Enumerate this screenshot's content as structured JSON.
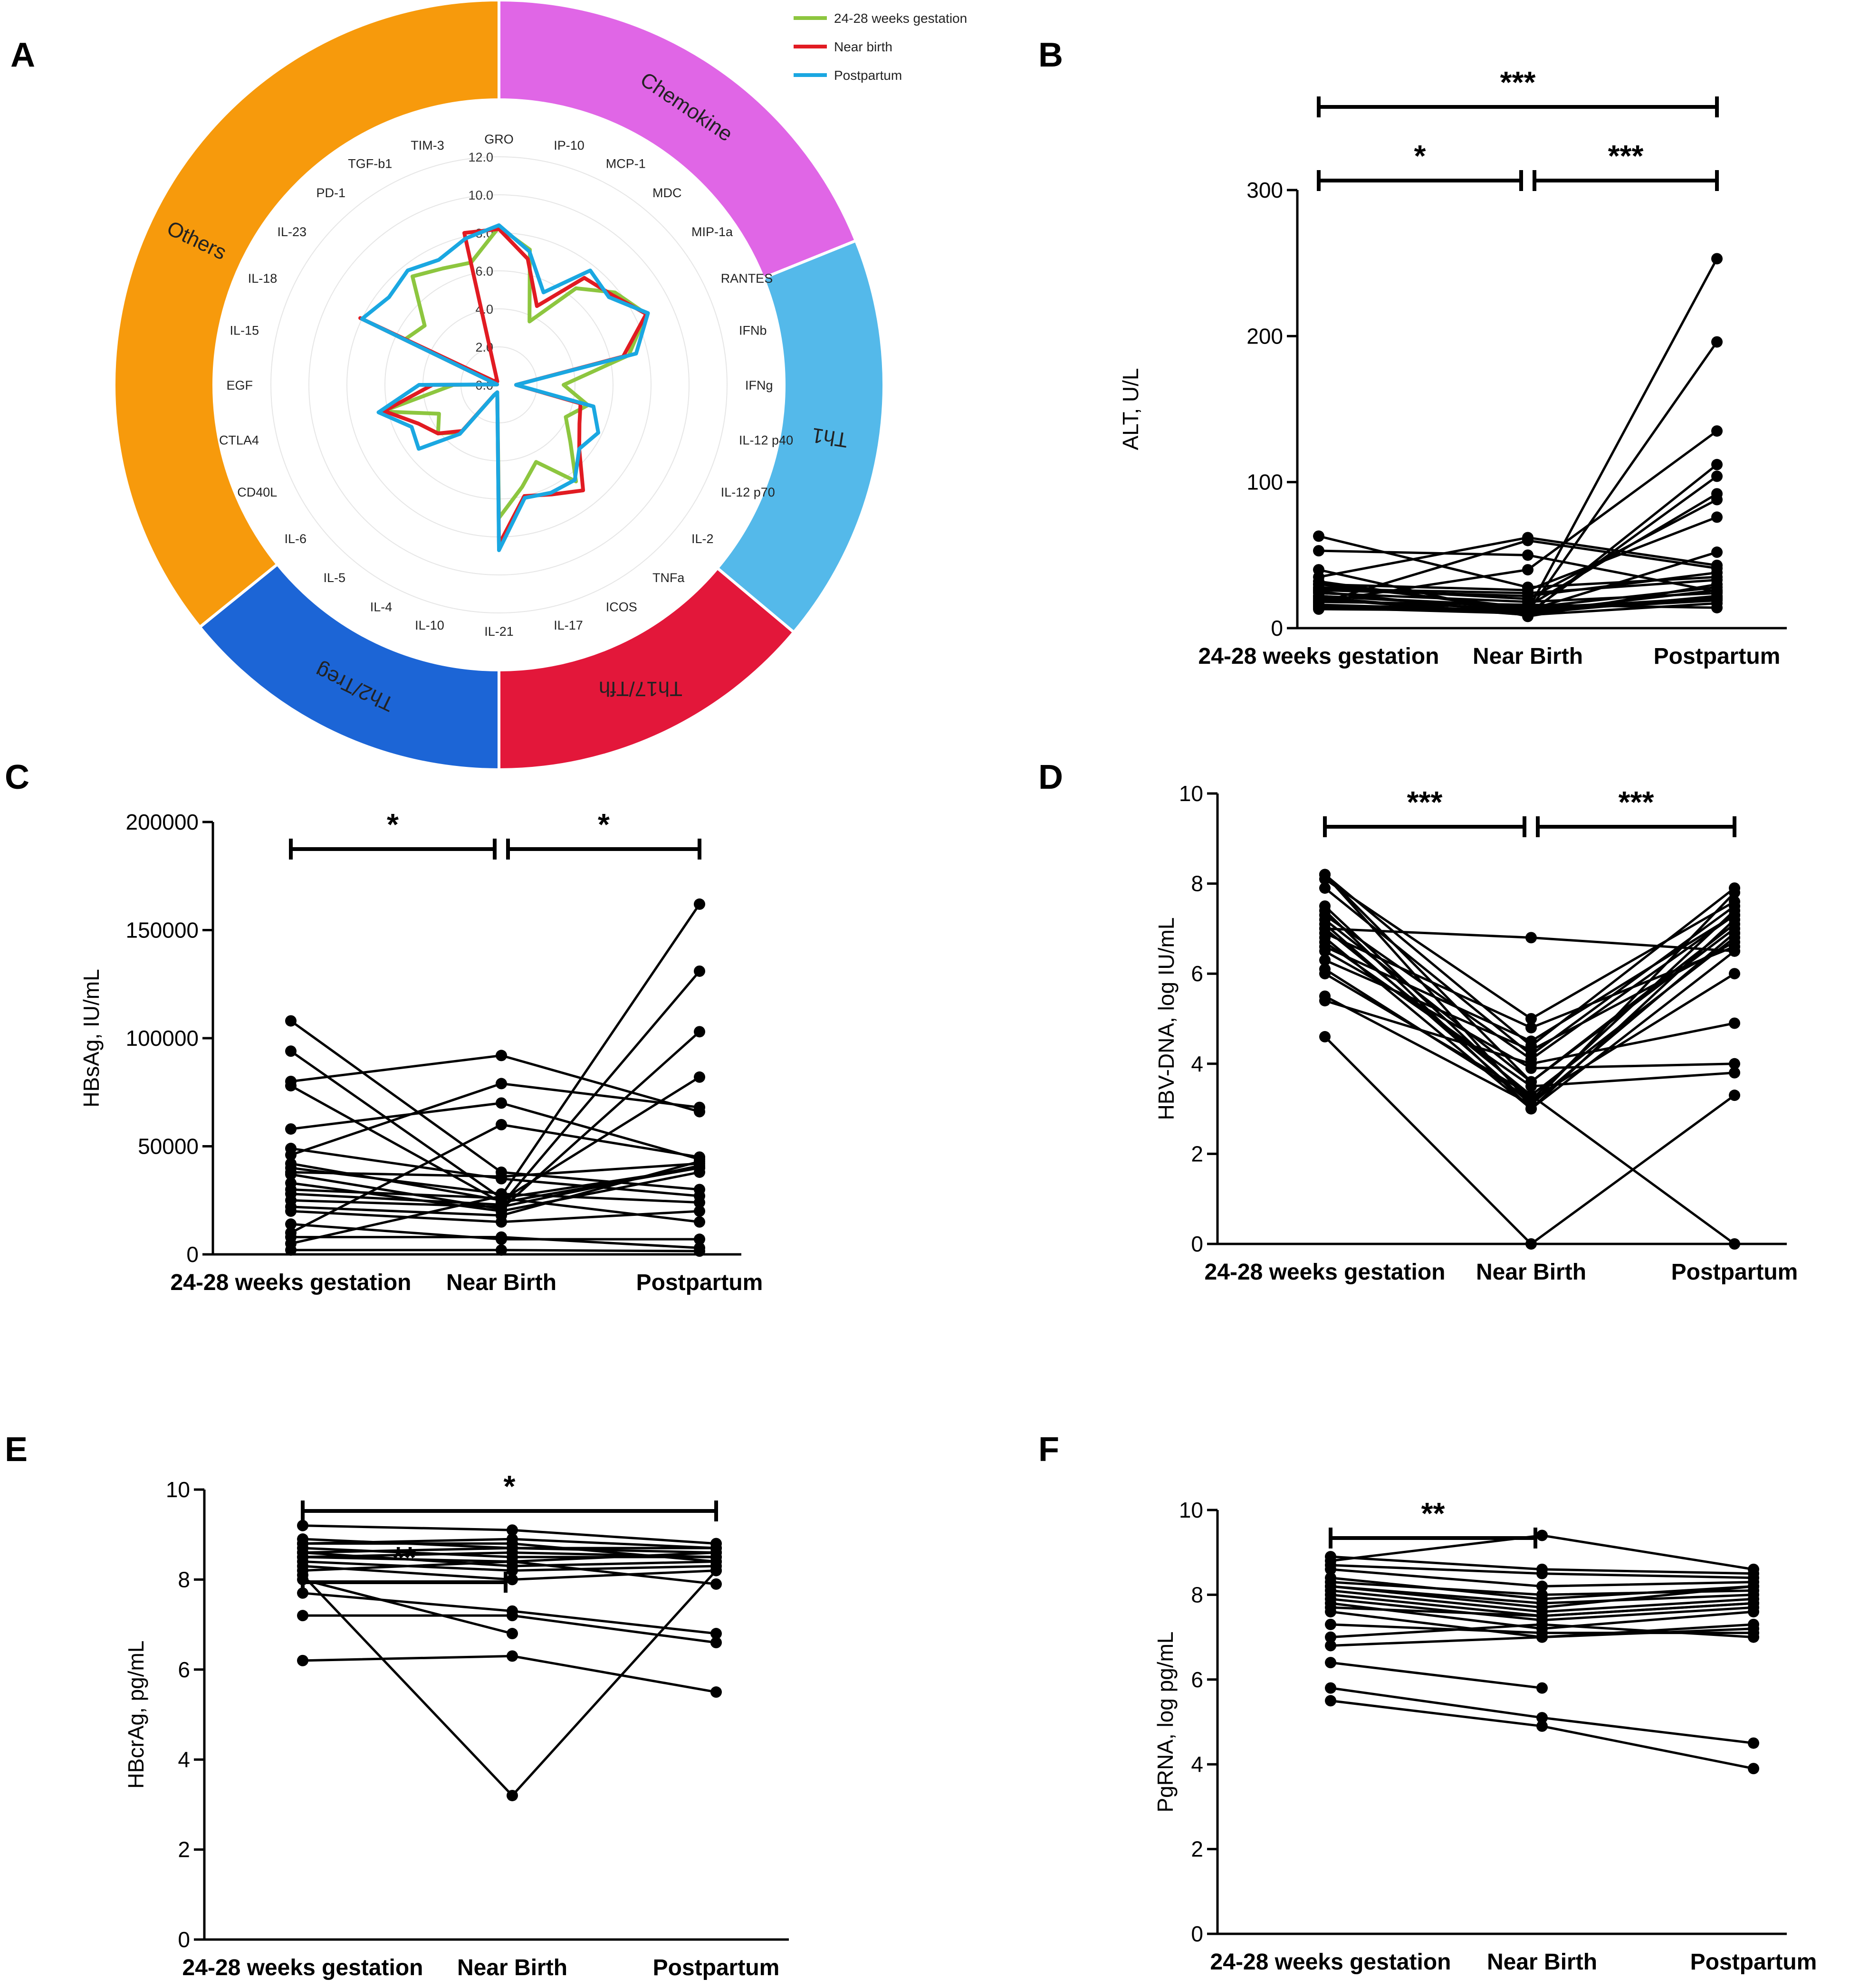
{
  "figure": {
    "panel_labels": [
      "A",
      "B",
      "C",
      "D",
      "E",
      "F"
    ],
    "colors": {
      "green": "#8dc63f",
      "red": "#e11b22",
      "blue": "#1aa7e1",
      "line": "#000000"
    }
  },
  "chart_data": [
    {
      "panel": "A",
      "type": "radar",
      "title": "",
      "axes": [
        "GRO",
        "IP-10",
        "MCP-1",
        "MDC",
        "MIP-1a",
        "RANTES",
        "IFNb",
        "IFNg",
        "IL-12 p40",
        "IL-12 p70",
        "IL-2",
        "TNFa",
        "ICOS",
        "IL-17",
        "IL-21",
        "IL-10",
        "IL-4",
        "IL-5",
        "IL-6",
        "CD40L",
        "CTLA4",
        "EGF",
        "IL-15",
        "IL-18",
        "IL-23",
        "PD-1",
        "TGF-b1",
        "TIM-3"
      ],
      "ticks": [
        "0.0",
        "2.0",
        "4.0",
        "6.0",
        "8.0",
        "10.0",
        "12.0"
      ],
      "rmax": 12,
      "legend": {
        "position": "top-right"
      },
      "series": [
        {
          "name": "24-28 weeks gestation",
          "color": "#8dc63f",
          "values": [
            8.3,
            7.3,
            3.7,
            6.5,
            7.8,
            8.6,
            7.0,
            3.4,
            4.8,
            3.9,
            4.8,
            6.5,
            4.5,
            5.5,
            7.0,
            0.4,
            0.6,
            3.2,
            4.1,
            3.5,
            6.3,
            2.4,
            0.1,
            5.5,
            5.0,
            7.3,
            6.8,
            6.6
          ]
        },
        {
          "name": "Near birth",
          "color": "#e11b22",
          "values": [
            8.2,
            6.8,
            4.6,
            7.2,
            7.6,
            8.6,
            6.7,
            0.9,
            4.4,
            4.7,
            5.4,
            7.1,
            6.4,
            6.0,
            8.4,
            0.4,
            0.6,
            3.1,
            4.1,
            4.7,
            6.2,
            3.5,
            0.1,
            8.1,
            0.3,
            0.3,
            0.2,
            8.2
          ]
        },
        {
          "name": "Postpartum",
          "color": "#1aa7e1",
          "values": [
            8.4,
            7.2,
            5.4,
            7.7,
            7.4,
            8.7,
            7.4,
            0.9,
            5.1,
            5.8,
            5.4,
            6.4,
            6.3,
            6.1,
            8.7,
            0.4,
            0.6,
            3.3,
            5.4,
            5.1,
            6.5,
            4.2,
            0.1,
            8.0,
            7.4,
            7.7,
            7.3,
            7.9
          ]
        }
      ],
      "ring": [
        {
          "label": "Chemokine",
          "color": "#e066e6",
          "start": 0,
          "end": 68
        },
        {
          "label": "Th1",
          "color": "#54b9ea",
          "start": 68,
          "end": 130
        },
        {
          "label": "Th17/Tfh",
          "color": "#e3173a",
          "start": 130,
          "end": 180
        },
        {
          "label": "Th2/Treg",
          "color": "#1c65d6",
          "start": 180,
          "end": 231
        },
        {
          "label": "Others",
          "color": "#f79a0c",
          "start": 231,
          "end": 360
        }
      ]
    },
    {
      "panel": "B",
      "type": "line",
      "categories": [
        "24-28 weeks gestation",
        "Near Birth",
        "Postpartum"
      ],
      "ylabel": "ALT, U/L",
      "ylim": [
        0,
        300
      ],
      "yticks": [
        "0",
        "100",
        "200",
        "300"
      ],
      "significance": [
        {
          "from": 0,
          "to": 1,
          "label": "*"
        },
        {
          "from": 1,
          "to": 2,
          "label": "***"
        },
        {
          "from": 0,
          "to": 2,
          "label": "***"
        }
      ],
      "series": [
        [
          13,
          12,
          253
        ],
        [
          15,
          11,
          196
        ],
        [
          18,
          40,
          135
        ],
        [
          20,
          9,
          112
        ],
        [
          25,
          10,
          104
        ],
        [
          22,
          15,
          92
        ],
        [
          28,
          20,
          88
        ],
        [
          30,
          26,
          76
        ],
        [
          16,
          12,
          52
        ],
        [
          35,
          62,
          43
        ],
        [
          17,
          60,
          41
        ],
        [
          63,
          28,
          35
        ],
        [
          53,
          50,
          25
        ],
        [
          40,
          8,
          30
        ],
        [
          14,
          10,
          22
        ],
        [
          22,
          14,
          28
        ],
        [
          24,
          18,
          24
        ],
        [
          19,
          13,
          21
        ],
        [
          26,
          22,
          38
        ],
        [
          32,
          12,
          19
        ],
        [
          21,
          9,
          17
        ],
        [
          18,
          16,
          14
        ],
        [
          27,
          24,
          33
        ],
        [
          15,
          11,
          26
        ],
        [
          30,
          14,
          20
        ]
      ]
    },
    {
      "panel": "C",
      "type": "line",
      "categories": [
        "24-28 weeks gestation",
        "Near Birth",
        "Postpartum"
      ],
      "ylabel": "HBsAg, IU/mL",
      "ylim": [
        0,
        200000
      ],
      "yticks": [
        "0",
        "50000",
        "100000",
        "150000",
        "200000"
      ],
      "significance": [
        {
          "from": 0,
          "to": 1,
          "label": "*"
        },
        {
          "from": 1,
          "to": 2,
          "label": "*"
        }
      ],
      "series": [
        [
          5000,
          27000,
          162000
        ],
        [
          28000,
          23000,
          131000
        ],
        [
          37000,
          21000,
          103000
        ],
        [
          42000,
          25000,
          82000
        ],
        [
          46000,
          79000,
          68000
        ],
        [
          108000,
          38000,
          30000
        ],
        [
          94000,
          26000,
          15000
        ],
        [
          80000,
          92000,
          66000
        ],
        [
          78000,
          24000,
          40000
        ],
        [
          58000,
          70000,
          44000
        ],
        [
          49000,
          35000,
          27000
        ],
        [
          10000,
          60000,
          45000
        ],
        [
          25000,
          22000,
          41000
        ],
        [
          33000,
          20000,
          38000
        ],
        [
          40000,
          28000,
          24000
        ],
        [
          20000,
          15000,
          20000
        ],
        [
          14000,
          7000,
          7000
        ],
        [
          8000,
          8000,
          3000
        ],
        [
          2000,
          2000,
          1500
        ],
        [
          38000,
          36000,
          42000
        ],
        [
          30000,
          26000,
          40000
        ],
        [
          22000,
          18000,
          43000
        ]
      ]
    },
    {
      "panel": "D",
      "type": "line",
      "categories": [
        "24-28 weeks gestation",
        "Near Birth",
        "Postpartum"
      ],
      "ylabel": "HBV-DNA, log IU/mL",
      "ylim": [
        0,
        10
      ],
      "yticks": [
        "0",
        "2",
        "4",
        "6",
        "8",
        "10"
      ],
      "significance": [
        {
          "from": 0,
          "to": 1,
          "label": "***"
        },
        {
          "from": 1,
          "to": 2,
          "label": "***"
        }
      ],
      "series": [
        [
          8.2,
          4.4,
          7.9
        ],
        [
          8.2,
          3.1,
          7.8
        ],
        [
          8.1,
          5.0,
          7.6
        ],
        [
          7.9,
          4.2,
          7.5
        ],
        [
          7.5,
          3.2,
          7.4
        ],
        [
          7.4,
          3.0,
          7.2
        ],
        [
          7.3,
          4.1,
          7.3
        ],
        [
          7.2,
          3.6,
          7.0
        ],
        [
          7.1,
          3.1,
          6.9
        ],
        [
          7.0,
          3.3,
          6.8
        ],
        [
          6.9,
          4.8,
          6.6
        ],
        [
          6.8,
          3.0,
          6.5
        ],
        [
          6.7,
          3.5,
          3.8
        ],
        [
          6.5,
          3.9,
          4.0
        ],
        [
          6.3,
          4.3,
          6.7
        ],
        [
          6.1,
          3.2,
          6.0
        ],
        [
          5.5,
          3.1,
          6.9
        ],
        [
          5.4,
          4.0,
          4.9
        ],
        [
          6.0,
          3.3,
          0.0
        ],
        [
          4.6,
          0.0,
          3.3
        ],
        [
          7.0,
          6.8,
          6.5
        ],
        [
          8.2,
          3.6,
          7.1
        ],
        [
          6.6,
          4.5,
          7.3
        ]
      ]
    },
    {
      "panel": "E",
      "type": "line",
      "categories": [
        "24-28 weeks gestation",
        "Near Birth",
        "Postpartum"
      ],
      "ylabel": "HBcrAg, pg/mL",
      "ylim": [
        0,
        10
      ],
      "yticks": [
        "0",
        "2",
        "4",
        "6",
        "8",
        "10"
      ],
      "significance": [
        {
          "from": 0,
          "to": 1,
          "label": "**"
        },
        {
          "from": 0,
          "to": 2,
          "label": "*"
        }
      ],
      "series": [
        [
          9.2,
          9.1,
          8.8
        ],
        [
          8.9,
          8.7,
          8.6
        ],
        [
          8.8,
          8.9,
          8.7
        ],
        [
          8.7,
          8.5,
          8.5
        ],
        [
          8.6,
          8.3,
          8.4
        ],
        [
          8.5,
          8.6,
          8.5
        ],
        [
          8.4,
          8.2,
          8.3
        ],
        [
          8.3,
          8.0,
          8.2
        ],
        [
          8.2,
          8.4,
          7.9
        ],
        [
          8.8,
          8.8,
          8.4
        ],
        [
          8.6,
          8.7,
          8.7
        ],
        [
          8.5,
          8.4,
          8.6
        ],
        [
          8.1,
          3.2,
          8.2
        ],
        [
          7.7,
          7.3,
          6.8
        ],
        [
          7.2,
          7.2,
          6.6
        ],
        [
          6.2,
          6.3,
          5.5
        ],
        [
          8.0,
          6.8,
          null
        ]
      ]
    },
    {
      "panel": "F",
      "type": "line",
      "categories": [
        "24-28 weeks gestation",
        "Near Birth",
        "Postpartum"
      ],
      "ylabel": "PgRNA, log pg/mL",
      "ylim": [
        0,
        10
      ],
      "yticks": [
        "0",
        "2",
        "4",
        "6",
        "8",
        "10"
      ],
      "significance": [
        {
          "from": 0,
          "to": 1,
          "label": "**"
        }
      ],
      "series": [
        [
          8.8,
          9.4,
          8.6
        ],
        [
          8.9,
          8.6,
          8.5
        ],
        [
          8.7,
          8.5,
          8.4
        ],
        [
          8.6,
          8.2,
          8.3
        ],
        [
          8.4,
          7.9,
          8.2
        ],
        [
          8.3,
          8.0,
          8.1
        ],
        [
          8.2,
          7.8,
          8.0
        ],
        [
          8.1,
          7.6,
          7.9
        ],
        [
          8.0,
          7.5,
          7.8
        ],
        [
          7.9,
          7.4,
          7.7
        ],
        [
          7.8,
          7.2,
          7.6
        ],
        [
          7.6,
          7.0,
          7.2
        ],
        [
          7.3,
          7.1,
          7.1
        ],
        [
          7.0,
          7.3,
          7.0
        ],
        [
          6.8,
          7.0,
          7.3
        ],
        [
          6.4,
          5.8,
          null
        ],
        [
          5.8,
          5.1,
          4.5
        ],
        [
          5.5,
          4.9,
          3.9
        ],
        [
          8.2,
          7.7,
          8.2
        ],
        [
          7.7,
          7.5,
          7.8
        ]
      ]
    }
  ]
}
